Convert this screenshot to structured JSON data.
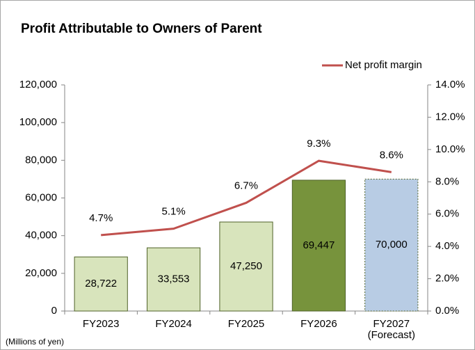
{
  "chart_data": {
    "type": "bar_line",
    "title": "Profit Attributable to Owners of Parent",
    "footnote": "(Millions of yen)",
    "categories": [
      "FY2023",
      "FY2024",
      "FY2025",
      "FY2026",
      "FY2027\n(Forecast)"
    ],
    "series": [
      {
        "name": "Profit attributable to owners of parent",
        "type": "bar",
        "colors": [
          "#d8e4bc",
          "#d8e4bc",
          "#d8e4bc",
          "#77933c",
          "#b8cce4"
        ],
        "border": "#4f6228",
        "values": [
          28722,
          33553,
          47250,
          69447,
          70000
        ],
        "value_labels": [
          "28,722",
          "33,553",
          "47,250",
          "69,447",
          "70,000"
        ]
      },
      {
        "name": "Net profit margin",
        "type": "line",
        "axis": "y2",
        "color": "#c0504d",
        "values": [
          4.7,
          5.1,
          6.7,
          9.3,
          8.6
        ],
        "value_labels": [
          "4.7%",
          "5.1%",
          "6.7%",
          "9.3%",
          "8.6%"
        ]
      }
    ],
    "ylim": [
      0,
      120000
    ],
    "yticks": [
      0,
      {
        "value": 20000,
        "label": "20,000"
      },
      {
        "value": 40000,
        "label": "40,000"
      },
      {
        "value": 60000,
        "label": "60,000"
      },
      {
        "value": 80000,
        "label": "80,000"
      },
      {
        "value": 100000,
        "label": "100,000"
      },
      {
        "value": 120000,
        "label": "120,000"
      }
    ],
    "y2lim": [
      0,
      14
    ],
    "y2ticks": [
      {
        "value": 0,
        "label": "0.0%"
      },
      {
        "value": 2,
        "label": "2.0%"
      },
      {
        "value": 4,
        "label": "4.0%"
      },
      {
        "value": 6,
        "label": "6.0%"
      },
      {
        "value": 8,
        "label": "8.0%"
      },
      {
        "value": 10,
        "label": "10.0%"
      },
      {
        "value": 12,
        "label": "12.0%"
      },
      {
        "value": 14,
        "label": "14.0%"
      }
    ],
    "legend": "top-right"
  }
}
